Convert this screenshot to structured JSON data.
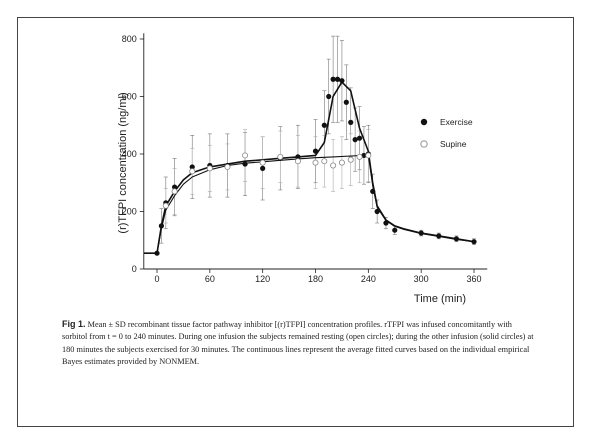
{
  "chart_data": {
    "type": "scatter",
    "xlabel": "Time (min)",
    "ylabel": "(r)TFPI concentration (ng/ml)",
    "xlim": [
      -15,
      375
    ],
    "ylim": [
      0,
      820
    ],
    "xticks": [
      "0",
      "60",
      "120",
      "180",
      "240",
      "300",
      "360"
    ],
    "yticks": [
      "0",
      "200",
      "400",
      "600",
      "800"
    ],
    "grid": false,
    "legend_position": "right",
    "series": [
      {
        "name": "Exercise",
        "marker": "filled-circle",
        "x": [
          0,
          5,
          10,
          20,
          40,
          60,
          80,
          100,
          120,
          140,
          160,
          180,
          190,
          195,
          200,
          205,
          210,
          215,
          220,
          225,
          230,
          235,
          240,
          245,
          250,
          260,
          270,
          300,
          320,
          340,
          360
        ],
        "y": [
          55,
          150,
          230,
          285,
          355,
          360,
          360,
          365,
          350,
          385,
          390,
          410,
          500,
          600,
          660,
          660,
          655,
          580,
          510,
          450,
          455,
          395,
          400,
          270,
          200,
          160,
          135,
          125,
          115,
          105,
          95
        ],
        "sd": [
          0,
          60,
          90,
          100,
          110,
          110,
          110,
          110,
          110,
          110,
          110,
          110,
          120,
          130,
          150,
          150,
          140,
          130,
          120,
          110,
          110,
          100,
          100,
          60,
          40,
          20,
          15,
          10,
          10,
          10,
          10
        ]
      },
      {
        "name": "Supine",
        "marker": "open-circle",
        "x": [
          10,
          20,
          40,
          60,
          80,
          100,
          120,
          140,
          160,
          180,
          190,
          200,
          210,
          220,
          230,
          240
        ],
        "y": [
          220,
          270,
          340,
          350,
          355,
          395,
          370,
          390,
          375,
          370,
          375,
          360,
          370,
          380,
          390,
          395
        ],
        "sd": [
          60,
          80,
          80,
          80,
          80,
          90,
          90,
          90,
          90,
          90,
          90,
          90,
          90,
          90,
          90,
          90
        ]
      }
    ],
    "fitted_curves": [
      {
        "x": [
          -15,
          0,
          5,
          10,
          20,
          30,
          40,
          60,
          80,
          100,
          120,
          140,
          160,
          180,
          190,
          200,
          210,
          220,
          230,
          240,
          245,
          250,
          260,
          270,
          280,
          300,
          320,
          340,
          360
        ],
        "y": [
          55,
          55,
          150,
          220,
          270,
          310,
          335,
          355,
          365,
          375,
          380,
          385,
          390,
          395,
          440,
          600,
          650,
          620,
          490,
          410,
          300,
          220,
          170,
          150,
          140,
          125,
          115,
          105,
          95
        ]
      },
      {
        "x": [
          0,
          5,
          10,
          20,
          30,
          40,
          60,
          80,
          100,
          120,
          140,
          160,
          180,
          200,
          220,
          240,
          245,
          250,
          260,
          270,
          280,
          300,
          320,
          340,
          360
        ],
        "y": [
          55,
          140,
          205,
          255,
          295,
          320,
          345,
          360,
          368,
          373,
          378,
          383,
          387,
          390,
          393,
          396,
          290,
          215,
          168,
          148,
          138,
          123,
          113,
          103,
          95
        ]
      }
    ]
  },
  "caption": {
    "label": "Fig 1.",
    "text": " Mean ± SD recombinant tissue factor pathway inhibitor [(r)TFPI] concentration profiles. rTFPI was infused concomitantly with sorbitol from t = 0 to 240 minutes. During one infusion the subjects remained resting (open circles); during the other infusion (solid circles) at 180 minutes the subjects exercised for 30 minutes. The continuous lines represent the average fitted curves based on the individual empirical Bayes estimates provided by NONMEM."
  }
}
